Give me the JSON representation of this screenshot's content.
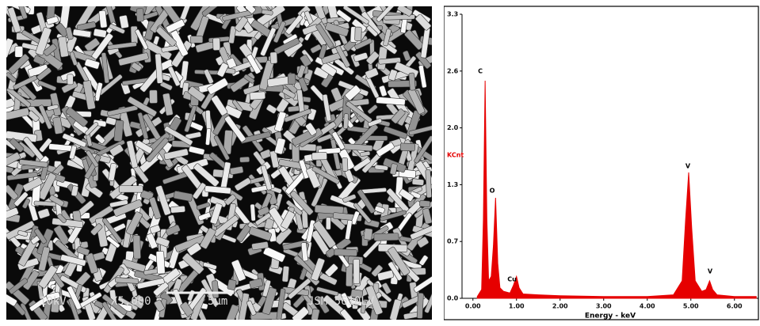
{
  "sem_image": {
    "voltage": "10kV",
    "magnification": "X5,000",
    "scale": "5μm",
    "instrument": "JSM-5610LV"
  },
  "chart_data": {
    "type": "area",
    "y_label": "KCnt",
    "x_label": "Energy - keV",
    "xlim": [
      -0.25,
      6.55
    ],
    "ylim": [
      0,
      3.25
    ],
    "xticks": [
      {
        "value": 0,
        "label": "0.00"
      },
      {
        "value": 1,
        "label": "1.00"
      },
      {
        "value": 2,
        "label": "2.00"
      },
      {
        "value": 3,
        "label": "3.00"
      },
      {
        "value": 4,
        "label": "4.00"
      },
      {
        "value": 5,
        "label": "5.00"
      },
      {
        "value": 6,
        "label": "6.00"
      }
    ],
    "yticks": [
      {
        "value": 0,
        "label": "0.0"
      },
      {
        "value": 0.65,
        "label": "0.7"
      },
      1.3,
      {
        "value": 1.95,
        "label": "2.0"
      },
      2.6,
      {
        "value": 3.25,
        "label": "3.3"
      }
    ],
    "annotations": [
      "C",
      "O",
      "Cu",
      "V",
      "V"
    ],
    "color": "#e60000",
    "x": [
      0.1,
      0.2,
      0.24,
      0.28,
      0.32,
      0.36,
      0.42,
      0.47,
      0.52,
      0.57,
      0.62,
      0.7,
      0.85,
      0.93,
      1.0,
      1.06,
      1.15,
      1.5,
      2.0,
      3.0,
      4.0,
      4.6,
      4.8,
      4.88,
      4.95,
      5.02,
      5.1,
      5.25,
      5.35,
      5.43,
      5.5,
      5.6,
      6.0,
      6.5
    ],
    "values": [
      0.02,
      0.1,
      0.9,
      2.49,
      0.9,
      0.2,
      0.25,
      0.6,
      1.15,
      0.4,
      0.12,
      0.08,
      0.06,
      0.15,
      0.25,
      0.12,
      0.05,
      0.04,
      0.03,
      0.02,
      0.02,
      0.04,
      0.2,
      0.9,
      1.44,
      0.8,
      0.2,
      0.08,
      0.1,
      0.2,
      0.1,
      0.04,
      0.02,
      0.02
    ]
  }
}
